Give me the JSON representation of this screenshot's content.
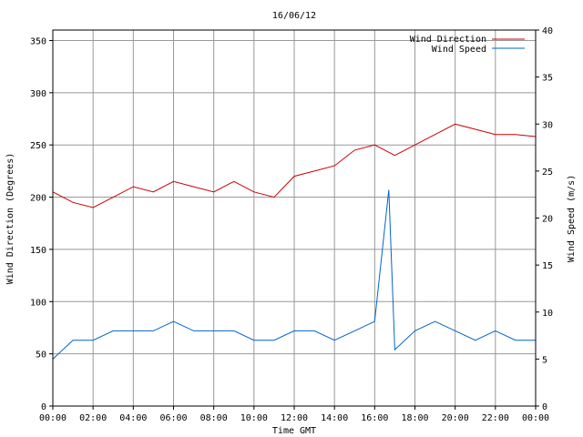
{
  "chart_data": {
    "type": "line",
    "title": "16/06/12",
    "xlabel": "Time GMT",
    "ylabel_left": "Wind Direction (Degrees)",
    "ylabel_right": "Wind Speed (m/s)",
    "x_ticks": [
      "00:00",
      "02:00",
      "04:00",
      "06:00",
      "08:00",
      "10:00",
      "12:00",
      "14:00",
      "16:00",
      "18:00",
      "20:00",
      "22:00",
      "00:00"
    ],
    "xlim_hours": [
      0,
      24
    ],
    "ylim_left": [
      0,
      360
    ],
    "y_ticks_left": [
      "0",
      "50",
      "100",
      "150",
      "200",
      "250",
      "300",
      "350"
    ],
    "ylim_right": [
      0,
      40
    ],
    "y_ticks_right": [
      "0",
      "5",
      "10",
      "15",
      "20",
      "25",
      "30",
      "35",
      "40"
    ],
    "grid": true,
    "legend_position": "top-right",
    "series": [
      {
        "name": "Wind Direction",
        "axis": "left",
        "color": "#cc0000",
        "x_hours": [
          0,
          1,
          2,
          3,
          4,
          5,
          6,
          7,
          8,
          9,
          10,
          11,
          12,
          13,
          14,
          15,
          16,
          17,
          18,
          19,
          20,
          21,
          22,
          23,
          24
        ],
        "values": [
          205,
          195,
          190,
          200,
          210,
          205,
          215,
          210,
          205,
          215,
          205,
          200,
          220,
          225,
          230,
          245,
          250,
          240,
          250,
          260,
          270,
          265,
          260,
          260,
          258
        ]
      },
      {
        "name": "Wind Speed",
        "axis": "right",
        "color": "#0066cc",
        "x_hours": [
          0,
          1,
          2,
          3,
          4,
          5,
          6,
          7,
          8,
          9,
          10,
          11,
          12,
          13,
          14,
          15,
          16,
          16.7,
          17,
          18,
          19,
          20,
          21,
          22,
          23,
          24
        ],
        "values": [
          5,
          7,
          7,
          8,
          8,
          8,
          9,
          8,
          8,
          8,
          7,
          7,
          8,
          8,
          7,
          8,
          9,
          23,
          6,
          8,
          9,
          8,
          7,
          8,
          7,
          7
        ]
      }
    ]
  }
}
